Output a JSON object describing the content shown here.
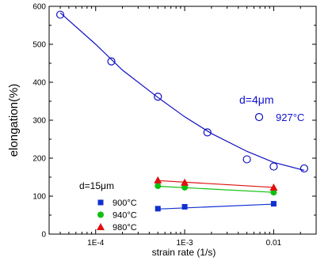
{
  "chart_data": {
    "type": "scatter",
    "xscale": "log",
    "xlim": [
      3e-05,
      0.03
    ],
    "ylim": [
      0,
      600
    ],
    "xlabel": "strain rate (1/s)",
    "ylabel": "elongation(%)",
    "x_ticks": [
      {
        "value": 0.0001,
        "label": "1E-4"
      },
      {
        "value": 0.001,
        "label": "1E-3"
      },
      {
        "value": 0.01,
        "label": "0.01"
      }
    ],
    "y_ticks": [
      {
        "value": 0,
        "label": "0"
      },
      {
        "value": 100,
        "label": "100"
      },
      {
        "value": 200,
        "label": "200"
      },
      {
        "value": 300,
        "label": "300"
      },
      {
        "value": 400,
        "label": "400"
      },
      {
        "value": 500,
        "label": "500"
      },
      {
        "value": 600,
        "label": "600"
      }
    ],
    "grid": false,
    "legend_groups": [
      {
        "title": "d=4μm",
        "title_color": "#1010d0",
        "placement": "right"
      },
      {
        "title": "d=15μm",
        "title_color": "#000000",
        "placement": "bottom-left"
      }
    ],
    "series": [
      {
        "name": "927°C",
        "legend_group": 0,
        "marker": "circle-open",
        "color": "#1010c0",
        "label_color": "#1010d0",
        "points": [
          [
            4e-05,
            578
          ],
          [
            0.00015,
            455
          ],
          [
            0.0005,
            362
          ],
          [
            0.0018,
            268
          ],
          [
            0.005,
            197
          ],
          [
            0.01,
            178
          ],
          [
            0.022,
            173
          ]
        ],
        "fit": [
          [
            4e-05,
            583
          ],
          [
            0.0001,
            500
          ],
          [
            0.0002,
            432
          ],
          [
            0.0005,
            360
          ],
          [
            0.001,
            309
          ],
          [
            0.002,
            265
          ],
          [
            0.005,
            218
          ],
          [
            0.01,
            189
          ],
          [
            0.022,
            168
          ]
        ]
      },
      {
        "name": "900°C",
        "legend_group": 1,
        "marker": "square",
        "color": "#1030d0",
        "points": [
          [
            0.0005,
            67
          ],
          [
            0.001,
            72
          ],
          [
            0.01,
            80
          ]
        ],
        "fit": [
          [
            0.0005,
            66
          ],
          [
            0.01,
            79
          ]
        ]
      },
      {
        "name": "940°C",
        "legend_group": 1,
        "marker": "circle",
        "color": "#10c010",
        "points": [
          [
            0.0005,
            127
          ],
          [
            0.001,
            123
          ],
          [
            0.01,
            110
          ]
        ],
        "fit": [
          [
            0.0005,
            126
          ],
          [
            0.01,
            110
          ]
        ]
      },
      {
        "name": "980°C",
        "legend_group": 1,
        "marker": "triangle",
        "color": "#e01010",
        "points": [
          [
            0.0005,
            142
          ],
          [
            0.001,
            136
          ],
          [
            0.01,
            123
          ]
        ],
        "fit": [
          [
            0.0005,
            141
          ],
          [
            0.01,
            123
          ]
        ]
      }
    ]
  }
}
